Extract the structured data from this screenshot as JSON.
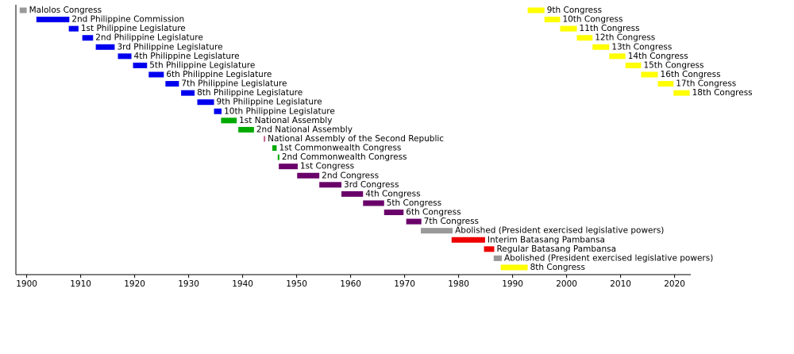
{
  "chart_data": {
    "type": "timeline",
    "xlim": [
      1898,
      2023
    ],
    "xticks": [
      1900,
      1910,
      1920,
      1930,
      1940,
      1950,
      1960,
      1970,
      1980,
      1990,
      2000,
      2010,
      2020
    ],
    "items": [
      {
        "label": "Malolos Congress",
        "start": 1898.7,
        "end": 1900,
        "color": "#999999"
      },
      {
        "label": "2nd Philippine Commission",
        "start": 1901.8,
        "end": 1907.9,
        "color": "#0000ee"
      },
      {
        "label": "1st Philippine Legislature",
        "start": 1907.8,
        "end": 1909.6,
        "color": "#0000ee"
      },
      {
        "label": "2nd Philippine Legislature",
        "start": 1910.3,
        "end": 1912.3,
        "color": "#0000ee"
      },
      {
        "label": "3rd Philippine Legislature",
        "start": 1912.8,
        "end": 1916.3,
        "color": "#0000ee"
      },
      {
        "label": "4th Philippine Legislature",
        "start": 1916.9,
        "end": 1919.4,
        "color": "#0000ee"
      },
      {
        "label": "5th Philippine Legislature",
        "start": 1919.7,
        "end": 1922.3,
        "color": "#0000ee"
      },
      {
        "label": "6th Philippine Legislature",
        "start": 1922.6,
        "end": 1925.4,
        "color": "#0000ee"
      },
      {
        "label": "7th Philippine Legislature",
        "start": 1925.7,
        "end": 1928.2,
        "color": "#0000ee"
      },
      {
        "label": "8th Philippine Legislature",
        "start": 1928.6,
        "end": 1931.1,
        "color": "#0000ee"
      },
      {
        "label": "9th Philippine Legislature",
        "start": 1931.6,
        "end": 1934.7,
        "color": "#0000ee"
      },
      {
        "label": "10th Philippine Legislature",
        "start": 1934.7,
        "end": 1936.1,
        "color": "#0000ee"
      },
      {
        "label": "1st National Assembly",
        "start": 1936,
        "end": 1938.9,
        "color": "#00aa00"
      },
      {
        "label": "2nd National Assembly",
        "start": 1939.2,
        "end": 1942.1,
        "color": "#00aa00"
      },
      {
        "label": "National Assembly of the Second Republic",
        "start": 1943.9,
        "end": 1944.2,
        "color": "#c0608a"
      },
      {
        "label": "1st Commonwealth Congress",
        "start": 1945.5,
        "end": 1946.3,
        "color": "#00aa00"
      },
      {
        "label": "2nd Commonwealth Congress",
        "start": 1946.5,
        "end": 1946.8,
        "color": "#00aa00"
      },
      {
        "label": "1st Congress",
        "start": 1946.7,
        "end": 1950.2,
        "color": "#6a006a"
      },
      {
        "label": "2nd Congress",
        "start": 1950.1,
        "end": 1954.2,
        "color": "#6a006a"
      },
      {
        "label": "3rd Congress",
        "start": 1954.2,
        "end": 1958.3,
        "color": "#6a006a"
      },
      {
        "label": "4th Congress",
        "start": 1958.3,
        "end": 1962.3,
        "color": "#6a006a"
      },
      {
        "label": "5th Congress",
        "start": 1962.3,
        "end": 1966.2,
        "color": "#6a006a"
      },
      {
        "label": "6th Congress",
        "start": 1966.2,
        "end": 1969.8,
        "color": "#6a006a"
      },
      {
        "label": "7th Congress",
        "start": 1970.3,
        "end": 1973.1,
        "color": "#6a006a"
      },
      {
        "label": "Abolished (President exercised legislative powers)",
        "start": 1973,
        "end": 1978.9,
        "color": "#999999"
      },
      {
        "label": "Interim Batasang Pambansa",
        "start": 1978.7,
        "end": 1984.9,
        "color": "#ee0000"
      },
      {
        "label": "Regular Batasang Pambansa",
        "start": 1984.7,
        "end": 1986.6,
        "color": "#ee0000"
      },
      {
        "label": "Abolished (President exercised legislative powers)",
        "start": 1986.5,
        "end": 1988,
        "color": "#999999"
      },
      {
        "label": "8th Congress",
        "start": 1987.8,
        "end": 1992.8,
        "color": "#ffff00"
      },
      {
        "label": "9th Congress",
        "start": 1992.8,
        "end": 1995.9,
        "color": "#ffff00"
      },
      {
        "label": "10th Congress",
        "start": 1995.9,
        "end": 1998.8,
        "color": "#ffff00"
      },
      {
        "label": "11th Congress",
        "start": 1998.8,
        "end": 2001.9,
        "color": "#ffff00"
      },
      {
        "label": "12th Congress",
        "start": 2001.9,
        "end": 2004.8,
        "color": "#ffff00"
      },
      {
        "label": "13th Congress",
        "start": 2004.8,
        "end": 2007.9,
        "color": "#ffff00"
      },
      {
        "label": "14th Congress",
        "start": 2007.9,
        "end": 2010.9,
        "color": "#ffff00"
      },
      {
        "label": "15th Congress",
        "start": 2010.9,
        "end": 2013.8,
        "color": "#ffff00"
      },
      {
        "label": "16th Congress",
        "start": 2013.8,
        "end": 2016.9,
        "color": "#ffff00"
      },
      {
        "label": "17th Congress",
        "start": 2016.9,
        "end": 2019.8,
        "color": "#ffff00"
      },
      {
        "label": "18th Congress",
        "start": 2019.8,
        "end": 2022.8,
        "color": "#ffff00"
      }
    ]
  }
}
